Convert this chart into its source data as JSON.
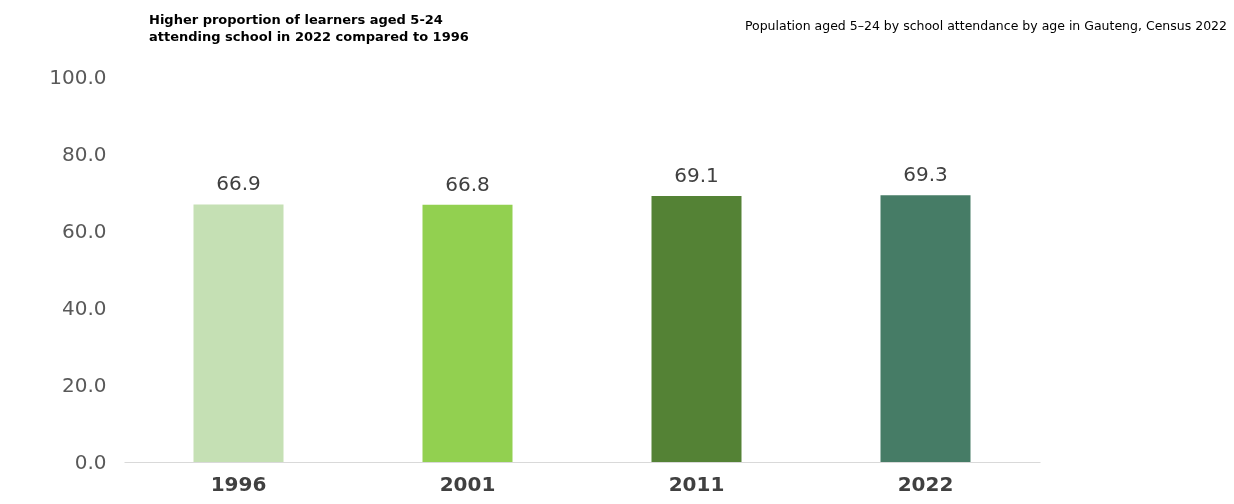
{
  "chart_data": {
    "type": "bar",
    "title": "Higher proportion of learners aged 5-24\nattending school in 2022 compared to 1996",
    "subtitle": "Population aged 5–24 by school attendance by age in Gauteng, Census 2022",
    "categories": [
      "1996",
      "2001",
      "2011",
      "2022"
    ],
    "values": [
      66.9,
      66.8,
      69.1,
      69.3
    ],
    "colors": [
      "#c5e0b4",
      "#92d050",
      "#548235",
      "#467c66"
    ],
    "ylim": [
      0,
      100
    ],
    "yticks": [
      {
        "value": 0,
        "label": "0.0"
      },
      {
        "value": 20,
        "label": "20.0"
      },
      {
        "value": 40,
        "label": "40.0"
      },
      {
        "value": 60,
        "label": "60.0"
      },
      {
        "value": 80,
        "label": "80.0"
      },
      {
        "value": 100,
        "label": "100.0"
      }
    ],
    "data_labels": true,
    "grid": false,
    "legend": false
  }
}
